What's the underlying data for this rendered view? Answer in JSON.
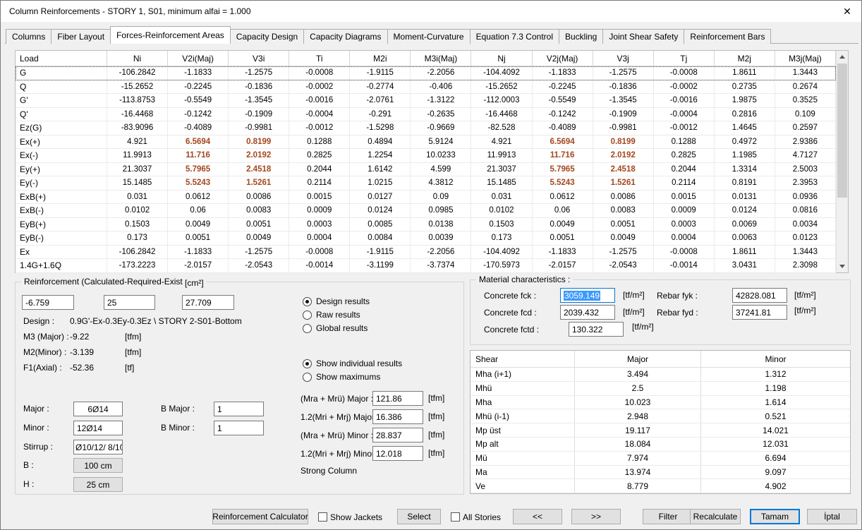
{
  "window": {
    "title": "Column Reinforcements - STORY 1, S01, minimum alfai = 1.000",
    "close_glyph": "✕"
  },
  "tabs": {
    "items": [
      {
        "label": "Columns",
        "active": false
      },
      {
        "label": "Fiber Layout",
        "active": false
      },
      {
        "label": "Forces-Reinforcement Areas",
        "active": true
      },
      {
        "label": "Capacity Design",
        "active": false
      },
      {
        "label": "Capacity Diagrams",
        "active": false
      },
      {
        "label": "Moment-Curvature",
        "active": false
      },
      {
        "label": "Equation 7.3 Control",
        "active": false
      },
      {
        "label": "Buckling",
        "active": false
      },
      {
        "label": "Joint Shear Safety",
        "active": false
      },
      {
        "label": "Reinforcement Bars",
        "active": false
      }
    ]
  },
  "forces_table": {
    "columns": [
      "Load",
      "Ni",
      "V2i(Maj)",
      "V3i",
      "Ti",
      "M2i",
      "M3i(Maj)",
      "Nj",
      "V2j(Maj)",
      "V3j",
      "Tj",
      "M2j",
      "M3j(Maj)"
    ],
    "hot_value_indices": [
      1,
      2,
      7,
      8
    ],
    "rows": [
      {
        "load": "G",
        "selected": true,
        "hot": false,
        "values": [
          "-106.2842",
          "-1.1833",
          "-1.2575",
          "-0.0008",
          "-1.9115",
          "-2.2056",
          "-104.4092",
          "-1.1833",
          "-1.2575",
          "-0.0008",
          "1.8611",
          "1.3443"
        ]
      },
      {
        "load": "Q",
        "selected": false,
        "hot": false,
        "values": [
          "-15.2652",
          "-0.2245",
          "-0.1836",
          "-0.0002",
          "-0.2774",
          "-0.406",
          "-15.2652",
          "-0.2245",
          "-0.1836",
          "-0.0002",
          "0.2735",
          "0.2674"
        ]
      },
      {
        "load": "G'",
        "selected": false,
        "hot": false,
        "values": [
          "-113.8753",
          "-0.5549",
          "-1.3545",
          "-0.0016",
          "-2.0761",
          "-1.3122",
          "-112.0003",
          "-0.5549",
          "-1.3545",
          "-0.0016",
          "1.9875",
          "0.3525"
        ]
      },
      {
        "load": "Q'",
        "selected": false,
        "hot": false,
        "values": [
          "-16.4468",
          "-0.1242",
          "-0.1909",
          "-0.0004",
          "-0.291",
          "-0.2635",
          "-16.4468",
          "-0.1242",
          "-0.1909",
          "-0.0004",
          "0.2816",
          "0.109"
        ]
      },
      {
        "load": "Ez(G)",
        "selected": false,
        "hot": false,
        "values": [
          "-83.9096",
          "-0.4089",
          "-0.9981",
          "-0.0012",
          "-1.5298",
          "-0.9669",
          "-82.528",
          "-0.4089",
          "-0.9981",
          "-0.0012",
          "1.4645",
          "0.2597"
        ]
      },
      {
        "load": "Ex(+)",
        "selected": false,
        "hot": true,
        "values": [
          "4.921",
          "6.5694",
          "0.8199",
          "0.1288",
          "0.4894",
          "5.9124",
          "4.921",
          "6.5694",
          "0.8199",
          "0.1288",
          "0.4972",
          "2.9386"
        ]
      },
      {
        "load": "Ex(-)",
        "selected": false,
        "hot": true,
        "values": [
          "11.9913",
          "11.716",
          "2.0192",
          "0.2825",
          "1.2254",
          "10.0233",
          "11.9913",
          "11.716",
          "2.0192",
          "0.2825",
          "1.1985",
          "4.7127"
        ]
      },
      {
        "load": "Ey(+)",
        "selected": false,
        "hot": true,
        "values": [
          "21.3037",
          "5.7965",
          "2.4518",
          "0.2044",
          "1.6142",
          "4.599",
          "21.3037",
          "5.7965",
          "2.4518",
          "0.2044",
          "1.3314",
          "2.5003"
        ]
      },
      {
        "load": "Ey(-)",
        "selected": false,
        "hot": true,
        "values": [
          "15.1485",
          "5.5243",
          "1.5261",
          "0.2114",
          "1.0215",
          "4.3812",
          "15.1485",
          "5.5243",
          "1.5261",
          "0.2114",
          "0.8191",
          "2.3953"
        ]
      },
      {
        "load": "ExB(+)",
        "selected": false,
        "hot": false,
        "values": [
          "0.031",
          "0.0612",
          "0.0086",
          "0.0015",
          "0.0127",
          "0.09",
          "0.031",
          "0.0612",
          "0.0086",
          "0.0015",
          "0.0131",
          "0.0936"
        ]
      },
      {
        "load": "ExB(-)",
        "selected": false,
        "hot": false,
        "values": [
          "0.0102",
          "0.06",
          "0.0083",
          "0.0009",
          "0.0124",
          "0.0985",
          "0.0102",
          "0.06",
          "0.0083",
          "0.0009",
          "0.0124",
          "0.0816"
        ]
      },
      {
        "load": "EyB(+)",
        "selected": false,
        "hot": false,
        "values": [
          "0.1503",
          "0.0049",
          "0.0051",
          "0.0003",
          "0.0085",
          "0.0138",
          "0.1503",
          "0.0049",
          "0.0051",
          "0.0003",
          "0.0069",
          "0.0034"
        ]
      },
      {
        "load": "EyB(-)",
        "selected": false,
        "hot": false,
        "values": [
          "0.173",
          "0.0051",
          "0.0049",
          "0.0004",
          "0.0084",
          "0.0039",
          "0.173",
          "0.0051",
          "0.0049",
          "0.0004",
          "0.0063",
          "0.0123"
        ]
      },
      {
        "load": "Ex",
        "selected": false,
        "hot": false,
        "values": [
          "-106.2842",
          "-1.1833",
          "-1.2575",
          "-0.0008",
          "-1.9115",
          "-2.2056",
          "-104.4092",
          "-1.1833",
          "-1.2575",
          "-0.0008",
          "1.8611",
          "1.3443"
        ]
      },
      {
        "load": "1.4G+1.6Q",
        "selected": false,
        "hot": false,
        "values": [
          "-173.2223",
          "-2.0157",
          "-2.0543",
          "-0.0014",
          "-3.1199",
          "-3.7374",
          "-170.5973",
          "-2.0157",
          "-2.0543",
          "-0.0014",
          "3.0431",
          "2.3098"
        ]
      }
    ]
  },
  "reinforcement": {
    "title": "Reinforcement (Calculated-Required-Existing) :",
    "unit": "[cm²]",
    "calculated": "-6.759",
    "required": "25",
    "existing": "27.709",
    "design_label": "Design :",
    "design_value": "0.9G'-Ex-0.3Ey-0.3Ez \\ STORY 2-S01-Bottom",
    "m3_label": "M3 (Major) :",
    "m3_value": "-9.22",
    "m3_unit": "[tfm]",
    "m2_label": "M2(Minor) :",
    "m2_value": "-3.139",
    "m2_unit": "[tfm]",
    "f1_label": "F1(Axial) :",
    "f1_value": "-52.36",
    "f1_unit": "[tf]",
    "major_label": "Major :",
    "major_value": "6Ø14",
    "minor_label": "Minor :",
    "minor_value": "12Ø14",
    "stirrup_label": "Stirrup :",
    "stirrup_value": "Ø10/12/ 8/10",
    "b_label": "B :",
    "b_value": "100 cm",
    "h_label": "H :",
    "h_value": "25 cm",
    "b_major_label": "B Major :",
    "b_major_value": "1",
    "b_minor_label": "B Minor :",
    "b_minor_value": "1"
  },
  "results_options": {
    "mode": [
      {
        "label": "Design results",
        "checked": true
      },
      {
        "label": "Raw results",
        "checked": false
      },
      {
        "label": "Global results",
        "checked": false
      }
    ],
    "display": [
      {
        "label": "Show individual results",
        "checked": true
      },
      {
        "label": "Show maximums",
        "checked": false
      }
    ]
  },
  "moments": {
    "rows": [
      {
        "label": "(Mra + Mrü) Major :",
        "value": "121.86",
        "unit": "[tfm]"
      },
      {
        "label": "1.2(Mri + Mrj) Major",
        "value": "16.386",
        "unit": "[tfm]"
      },
      {
        "label": "(Mra + Mrü) Minor :",
        "value": "28.837",
        "unit": "[tfm]"
      },
      {
        "label": "1.2(Mri + Mrj) Minor",
        "value": "12.018",
        "unit": "[tfm]"
      }
    ],
    "status": "Strong Column"
  },
  "material": {
    "title": "Material characteristics :",
    "fck_label": "Concrete fck :",
    "fck_value": "3059.149",
    "fck_unit": "[tf/m²]",
    "fcd_label": "Concrete fcd :",
    "fcd_value": "2039.432",
    "fcd_unit": "[tf/m²]",
    "fctd_label": "Concrete fctd :",
    "fctd_value": "130.322",
    "fctd_unit": "[tf/m²]",
    "fyk_label": "Rebar fyk :",
    "fyk_value": "42828.081",
    "fyk_unit": "[tf/m²]",
    "fyd_label": "Rebar fyd :",
    "fyd_value": "37241.81",
    "fyd_unit": "[tf/m²]"
  },
  "shear_table": {
    "columns": [
      "Shear",
      "Major",
      "Minor"
    ],
    "rows": [
      [
        "Mha (i+1)",
        "3.494",
        "1.312"
      ],
      [
        "Mhü",
        "2.5",
        "1.198"
      ],
      [
        "Mha",
        "10.023",
        "1.614"
      ],
      [
        "Mhü (i-1)",
        "2.948",
        "0.521"
      ],
      [
        "Mp üst",
        "19.117",
        "14.021"
      ],
      [
        "Mp alt",
        "18.084",
        "12.031"
      ],
      [
        "Mü",
        "7.974",
        "6.694"
      ],
      [
        "Ma",
        "13.974",
        "9.097"
      ],
      [
        "Ve",
        "8.779",
        "4.902"
      ]
    ]
  },
  "footer": {
    "reinforcement_calculator": "Reinforcement Calculator",
    "show_jackets": "Show Jackets",
    "select": "Select",
    "all_stories": "All Stories",
    "prev": "<<",
    "next": ">>",
    "filter": "Filter",
    "recalculate": "Recalculate",
    "ok": "Tamam",
    "cancel": "İptal"
  },
  "colors": {
    "accent": "#a3471d",
    "selection_blue": "#0078d7"
  }
}
